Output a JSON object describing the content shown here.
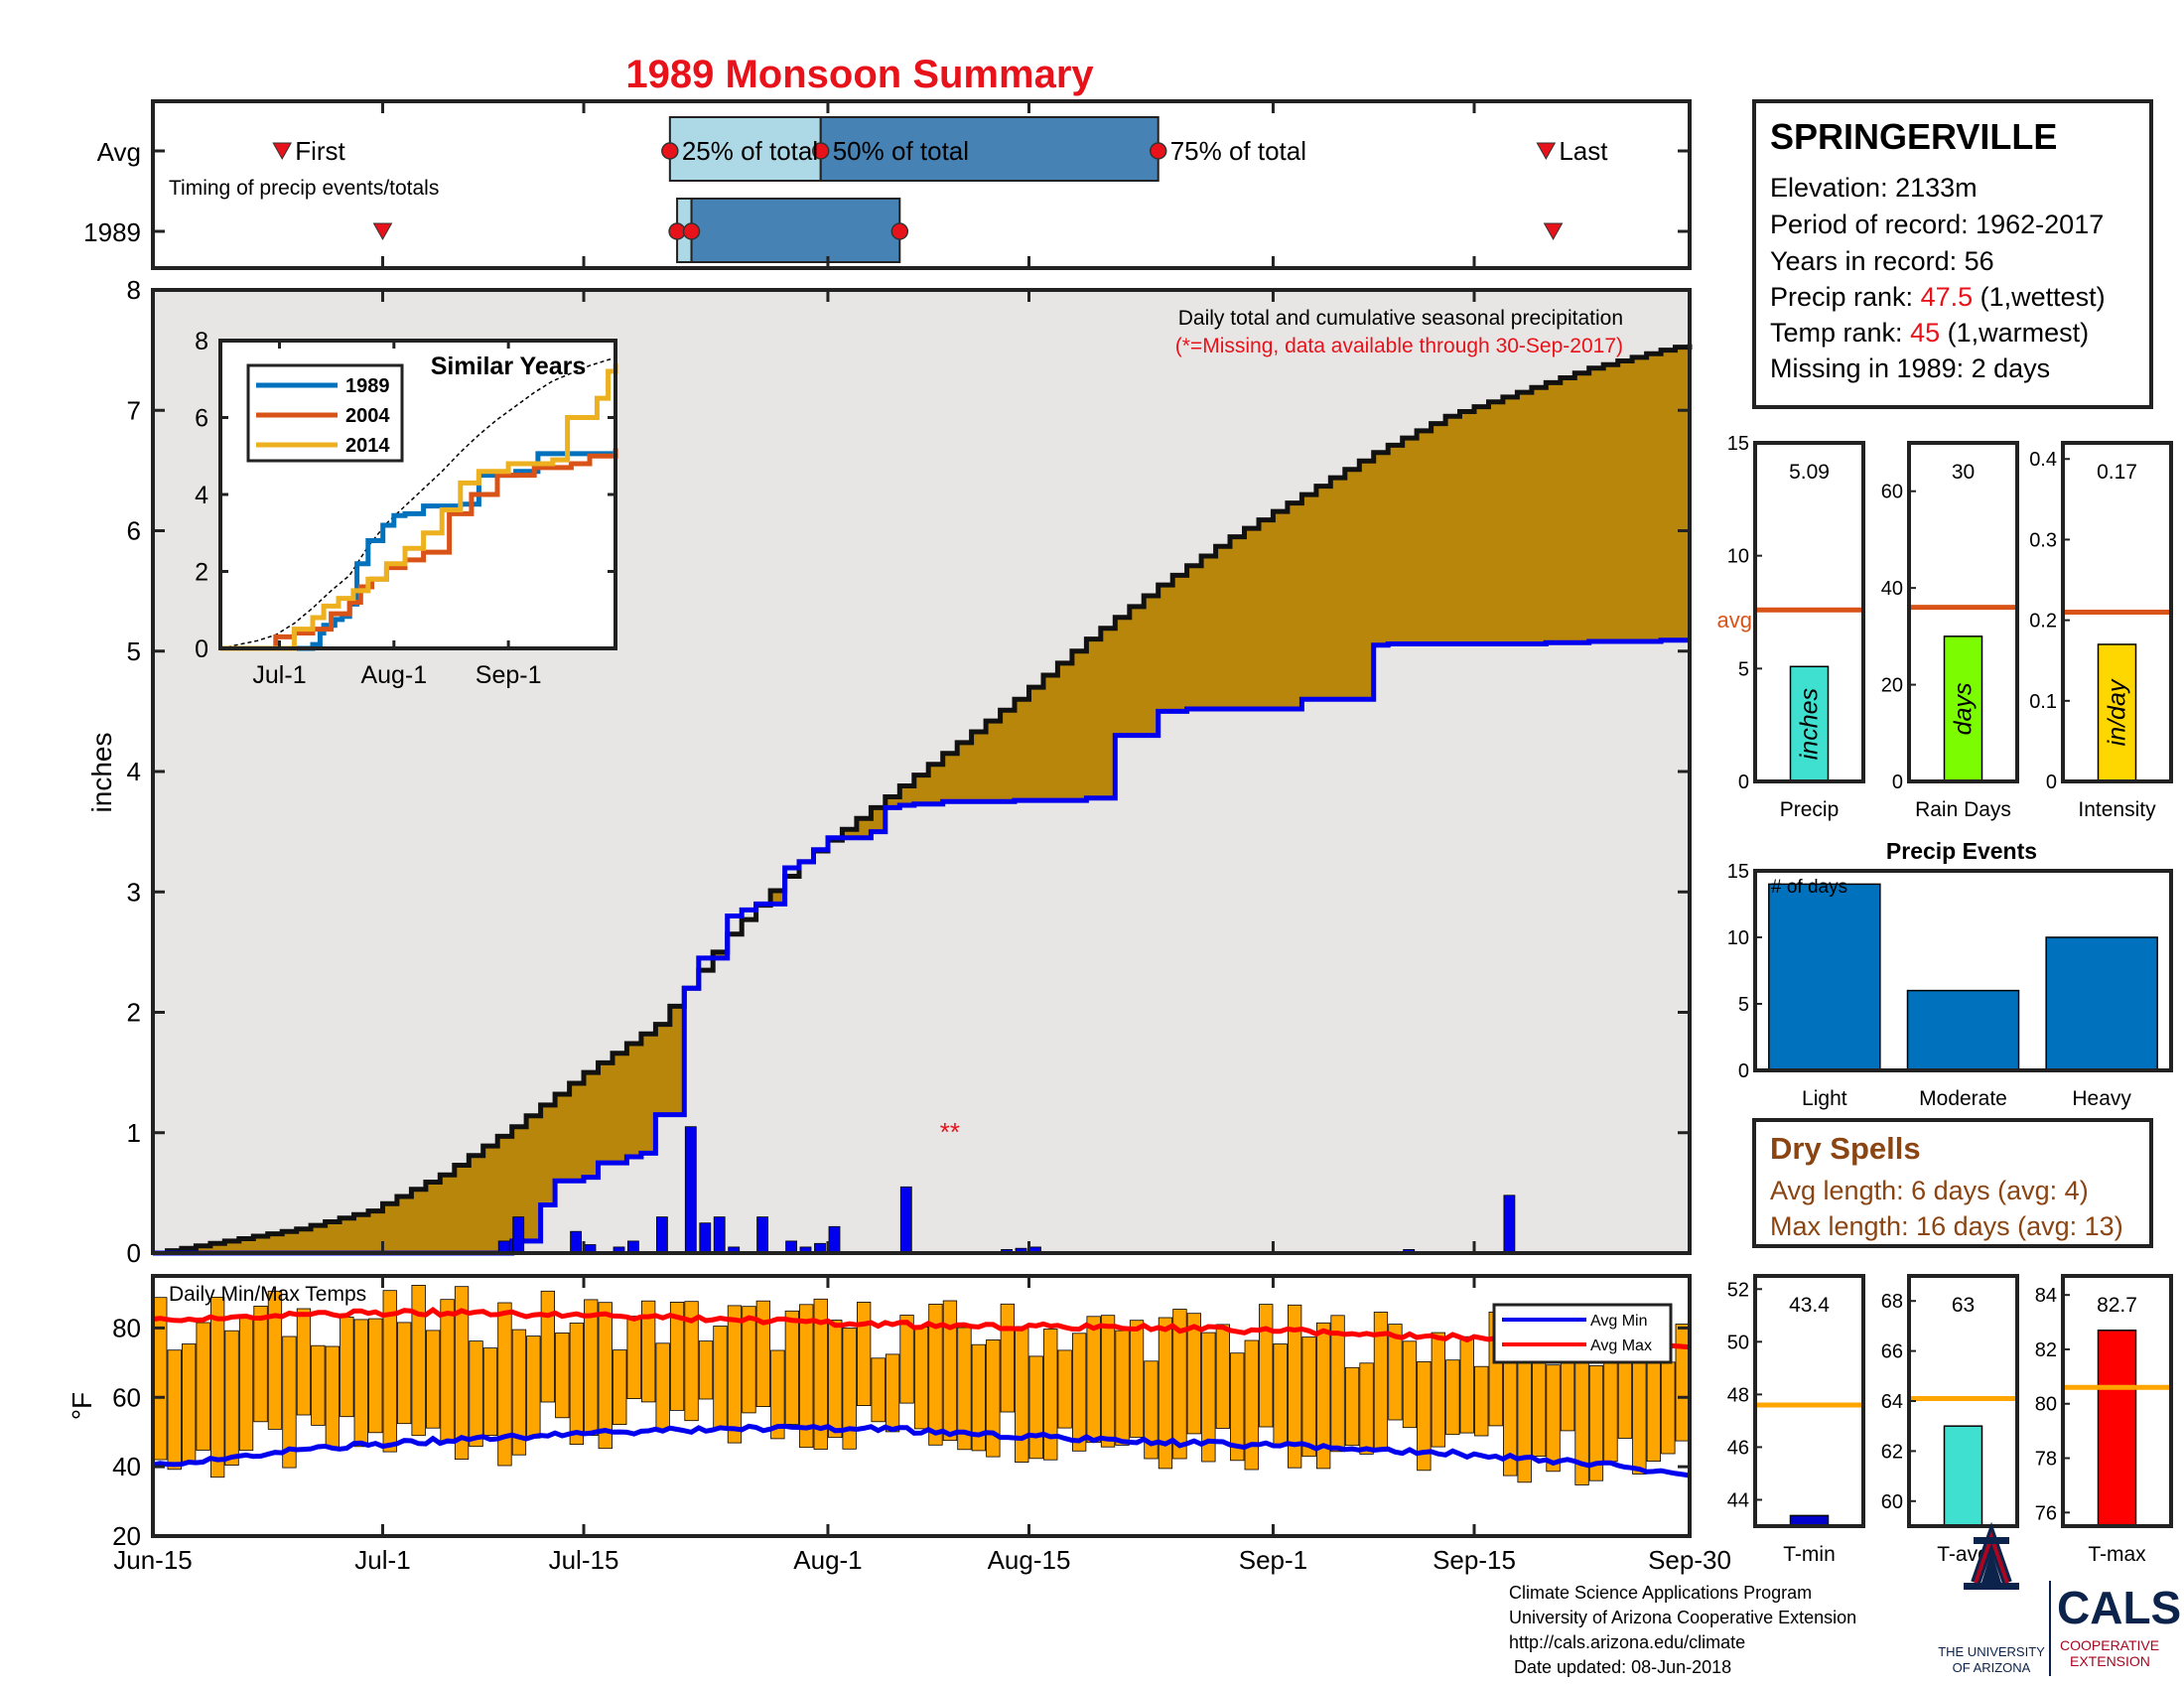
{
  "title": "1989 Monsoon Summary",
  "timing": {
    "avg_label": "Avg",
    "year_label": "1989",
    "subtitle": "Timing of precip events/totals",
    "first_label": "First",
    "last_label": "Last",
    "q25_label": "25% of total",
    "q50_label": "50% of total",
    "q75_label": "75% of total",
    "avg_first_day": 9,
    "avg_q25_day": 36,
    "avg_q50_day": 46.5,
    "avg_q75_day": 70,
    "avg_last_day": 97,
    "year_first_day": 16,
    "year_q25_day": 36.5,
    "year_q50_day": 37.5,
    "year_q75_day": 52,
    "year_last_day": 97.5
  },
  "station": {
    "name": "SPRINGERVILLE",
    "elevation_line": "Elevation: 2133m",
    "period_line": "Period of record: 1962-2017",
    "years_line": "Years in record: 56",
    "precip_rank_prefix": "Precip rank: ",
    "precip_rank_value": "47.5",
    "precip_rank_suffix": " (1,wettest)",
    "temp_rank_prefix": "Temp rank: ",
    "temp_rank_value": "45",
    "temp_rank_suffix": " (1,warmest)",
    "missing_line": "Missing in 1989: 2 days"
  },
  "main_chart": {
    "annotation_1": "Daily total and cumulative seasonal precipitation",
    "annotation_2": "(*=Missing, data available through 30-Sep-2017)",
    "missing_marker": "**",
    "ylabel": "inches",
    "yticks": [
      "0",
      "1",
      "2",
      "3",
      "4",
      "5",
      "6",
      "7",
      "8"
    ],
    "xticks": [
      "Jun-15",
      "Jul-1",
      "Jul-15",
      "Aug-1",
      "Aug-15",
      "Sep-1",
      "Sep-15",
      "Sep-30"
    ]
  },
  "inset": {
    "title": "Similar Years",
    "legend": [
      "1989",
      "2004",
      "2014"
    ],
    "yticks": [
      "0",
      "2",
      "4",
      "6",
      "8"
    ],
    "xticks": [
      "Jul-1",
      "Aug-1",
      "Sep-1"
    ]
  },
  "temps": {
    "title": "Daily Min/Max Temps",
    "ylabel": "°F",
    "yticks": [
      "20",
      "40",
      "60",
      "80"
    ],
    "legend_min": "Avg Min",
    "legend_max": "Avg Max"
  },
  "bars_row1": [
    {
      "label": "Precip",
      "value_text": "5.09",
      "unit": "inches",
      "yticks": [
        "0",
        "5",
        "10",
        "15"
      ],
      "avg_label": "avg"
    },
    {
      "label": "Rain Days",
      "value_text": "30",
      "unit": "days",
      "yticks": [
        "0",
        "20",
        "40",
        "60"
      ]
    },
    {
      "label": "Intensity",
      "value_text": "0.17",
      "unit": "in/day",
      "yticks": [
        "0",
        "0.1",
        "0.2",
        "0.3",
        "0.4"
      ]
    }
  ],
  "events": {
    "title": "Precip Events",
    "ylabel_note": "# of days",
    "yticks": [
      "0",
      "5",
      "10",
      "15"
    ],
    "categories": [
      "Light",
      "Moderate",
      "Heavy"
    ]
  },
  "dry_spells": {
    "title": "Dry Spells",
    "avg_line": "Avg length: 6 days (avg: 4)",
    "max_line": "Max length: 16 days (avg: 13)"
  },
  "bars_row2": [
    {
      "label": "T-min",
      "value_text": "43.4",
      "yticks": [
        "44",
        "46",
        "48",
        "50",
        "52"
      ]
    },
    {
      "label": "T-avg",
      "value_text": "63",
      "yticks": [
        "60",
        "62",
        "64",
        "66",
        "68"
      ]
    },
    {
      "label": "T-max",
      "value_text": "82.7",
      "yticks": [
        "76",
        "78",
        "80",
        "82",
        "84"
      ]
    }
  ],
  "footer": {
    "line1": "Climate Science Applications Program",
    "line2": "University of Arizona Cooperative Extension",
    "line3": "http://cals.arizona.edu/climate",
    "line4": " Date updated: 08-Jun-2018"
  },
  "logo": {
    "ua_line1": "THE UNIVERSITY",
    "ua_line2": "OF ARIZONA",
    "cals": "CALS",
    "coop1": "COOPERATIVE",
    "coop2": "EXTENSION"
  },
  "colors": {
    "title_red": "#e8121b",
    "cumulative_avg": "#b8860b",
    "cumulative_above": "#228b22",
    "daily_blue": "#0000ee",
    "band_light": "#add8e6",
    "band_dark": "#4682b4",
    "temp_bar": "#ffa500",
    "avg_line": "#d95319",
    "bar_blue": "#0072bd",
    "precip_bar": "#40e0d0",
    "days_bar": "#7cfc00",
    "intensity_bar": "#ffd700",
    "tmin_bar": "#0000cd",
    "tavg_bar": "#40e0d0",
    "tmax_bar": "#ff0000",
    "dry_brown": "#8b4513"
  },
  "chart_data": [
    {
      "type": "area",
      "title": "Daily total and cumulative seasonal precipitation",
      "ylabel": "inches",
      "xlim": [
        0,
        107
      ],
      "ylim": [
        0,
        8
      ],
      "avg_cumulative": {
        "x": [
          0,
          5,
          10,
          15,
          20,
          25,
          30,
          35,
          37,
          40,
          45,
          50,
          55,
          60,
          65,
          70,
          75,
          80,
          85,
          90,
          95,
          100,
          105,
          107
        ],
        "y": [
          0,
          0.1,
          0.2,
          0.35,
          0.65,
          1.05,
          1.5,
          1.9,
          2.2,
          2.65,
          3.25,
          3.7,
          4.15,
          4.6,
          5.1,
          5.55,
          5.95,
          6.3,
          6.65,
          6.95,
          7.15,
          7.35,
          7.5,
          7.55
        ]
      },
      "cumulative_1989": {
        "x": [
          0,
          24,
          25,
          27,
          28,
          30,
          31,
          33,
          34,
          35,
          37,
          38,
          40,
          41,
          42,
          44,
          45,
          46,
          47,
          50,
          51,
          52,
          53,
          55,
          60,
          65,
          67,
          70,
          72,
          80,
          85,
          86,
          97,
          100,
          105,
          107
        ],
        "y": [
          0,
          0,
          0.1,
          0.4,
          0.6,
          0.63,
          0.75,
          0.8,
          0.83,
          1.15,
          2.2,
          2.45,
          2.8,
          2.85,
          2.9,
          3.2,
          3.25,
          3.35,
          3.45,
          3.5,
          3.7,
          3.72,
          3.73,
          3.75,
          3.76,
          3.78,
          4.3,
          4.5,
          4.52,
          4.6,
          5.05,
          5.06,
          5.07,
          5.08,
          5.09,
          5.09
        ]
      },
      "daily_1989": {
        "x": [
          24,
          25,
          29,
          30,
          32,
          33,
          35,
          37,
          38,
          39,
          40,
          42,
          44,
          45,
          46,
          47,
          52,
          59,
          60,
          61,
          87,
          94
        ],
        "y": [
          0.1,
          0.3,
          0.18,
          0.07,
          0.05,
          0.1,
          0.3,
          1.05,
          0.25,
          0.3,
          0.05,
          0.3,
          0.1,
          0.05,
          0.08,
          0.22,
          0.55,
          0.03,
          0.04,
          0.05,
          0.03,
          0.48
        ]
      }
    },
    {
      "type": "line",
      "title": "Similar Years",
      "xticks": [
        "Jul-1",
        "Aug-1",
        "Sep-1"
      ],
      "ylim": [
        0,
        8
      ],
      "series": [
        {
          "name": "1989",
          "x": [
            0,
            24,
            25,
            27,
            28,
            31,
            33,
            35,
            37,
            40,
            44,
            47,
            50,
            55,
            65,
            70,
            80,
            86,
            107
          ],
          "y": [
            0,
            0,
            0.1,
            0.4,
            0.6,
            0.75,
            0.83,
            1.15,
            2.2,
            2.8,
            3.2,
            3.45,
            3.5,
            3.7,
            3.75,
            4.5,
            4.6,
            5.06,
            5.09
          ]
        },
        {
          "name": "2004",
          "x": [
            0,
            10,
            15,
            20,
            25,
            30,
            35,
            38,
            41,
            45,
            50,
            55,
            62,
            68,
            75,
            85,
            95,
            100,
            107
          ],
          "y": [
            0,
            0,
            0.3,
            0.4,
            0.5,
            0.9,
            1.2,
            1.6,
            1.8,
            2.1,
            2.3,
            2.5,
            3.5,
            4.0,
            4.5,
            4.7,
            4.8,
            5.0,
            5.2
          ]
        },
        {
          "name": "2014",
          "x": [
            0,
            12,
            20,
            25,
            28,
            32,
            36,
            40,
            45,
            50,
            55,
            60,
            65,
            70,
            78,
            84,
            90,
            94,
            98,
            102,
            105,
            107
          ],
          "y": [
            0,
            0,
            0.5,
            0.8,
            1.1,
            1.3,
            1.5,
            1.8,
            2.2,
            2.6,
            3.0,
            3.6,
            4.3,
            4.6,
            4.8,
            4.8,
            4.9,
            6.0,
            6.0,
            6.5,
            7.2,
            7.4
          ]
        }
      ]
    },
    {
      "type": "bar",
      "title": "Daily Min/Max Temps",
      "ylabel": "°F",
      "ylim": [
        20,
        95
      ],
      "avg_min": {
        "x": [
          0,
          10,
          20,
          30,
          40,
          50,
          60,
          70,
          80,
          90,
          100,
          107
        ],
        "y": [
          40,
          45,
          47.5,
          49.5,
          51,
          51,
          49,
          47,
          46,
          44,
          41,
          38
        ]
      },
      "avg_max": {
        "x": [
          0,
          10,
          20,
          30,
          40,
          50,
          60,
          70,
          80,
          90,
          100,
          107
        ],
        "y": [
          82,
          84,
          84.5,
          83.5,
          82.5,
          81,
          80.5,
          80,
          79,
          77.5,
          76,
          75
        ]
      }
    },
    {
      "type": "bar",
      "categories": [
        "Precip"
      ],
      "values": [
        5.09
      ],
      "avg": 7.6,
      "ylim": [
        0,
        15
      ]
    },
    {
      "type": "bar",
      "categories": [
        "Rain Days"
      ],
      "values": [
        30
      ],
      "avg": 36,
      "ylim": [
        0,
        70
      ]
    },
    {
      "type": "bar",
      "categories": [
        "Intensity"
      ],
      "values": [
        0.17
      ],
      "avg": 0.21,
      "ylim": [
        0,
        0.42
      ]
    },
    {
      "type": "bar",
      "title": "Precip Events",
      "categories": [
        "Light",
        "Moderate",
        "Heavy"
      ],
      "values": [
        14,
        6,
        10
      ],
      "ylim": [
        0,
        15
      ]
    },
    {
      "type": "bar",
      "categories": [
        "T-min"
      ],
      "values": [
        43.4
      ],
      "avg": 47.6,
      "ylim": [
        43,
        52.5
      ]
    },
    {
      "type": "bar",
      "categories": [
        "T-avg"
      ],
      "values": [
        63
      ],
      "avg": 64.1,
      "ylim": [
        59,
        69
      ]
    },
    {
      "type": "bar",
      "categories": [
        "T-max"
      ],
      "values": [
        82.7
      ],
      "avg": 80.6,
      "ylim": [
        75.5,
        84.7
      ]
    }
  ]
}
